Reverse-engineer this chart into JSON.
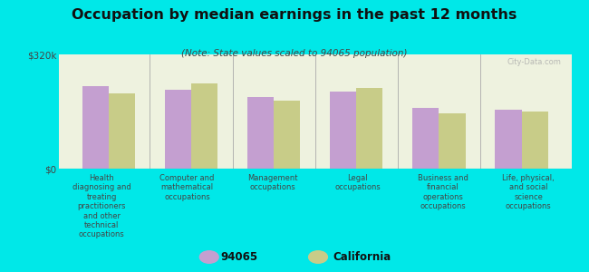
{
  "title": "Occupation by median earnings in the past 12 months",
  "subtitle": "(Note: State values scaled to 94065 population)",
  "background_color": "#00e8e8",
  "plot_bg_color": "#eef2df",
  "categories": [
    "Health\ndiagnosing and\ntreating\npractitioners\nand other\ntechnical\noccupations",
    "Computer and\nmathematical\noccupations",
    "Management\noccupations",
    "Legal\noccupations",
    "Business and\nfinancial\noperations\noccupations",
    "Life, physical,\nand social\nscience\noccupations"
  ],
  "values_94065": [
    230000,
    220000,
    200000,
    215000,
    170000,
    165000
  ],
  "values_california": [
    210000,
    240000,
    190000,
    225000,
    155000,
    160000
  ],
  "bar_color_94065": "#c49fd0",
  "bar_color_california": "#c8cc88",
  "ylim": [
    0,
    320000
  ],
  "yticks": [
    0,
    320000
  ],
  "ytick_labels": [
    "$0",
    "$320k"
  ],
  "legend_labels": [
    "94065",
    "California"
  ],
  "watermark": "City-Data.com",
  "bar_width": 0.32
}
